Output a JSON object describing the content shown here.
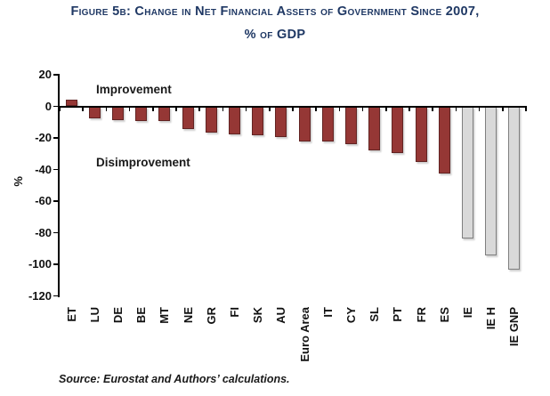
{
  "title": {
    "line1": "Figure 5b: Change in Net Financial Assets of Government Since 2007,",
    "line2": "% of GDP"
  },
  "annotations": {
    "improvement": "Improvement",
    "disimprovement": "Disimprovement"
  },
  "y_axis": {
    "label": "%",
    "ticks": [
      20,
      0,
      -20,
      -40,
      -60,
      -80,
      -100,
      -120
    ]
  },
  "source": "Source: Eurostat and Authors’ calculations.",
  "colors": {
    "bar_red": "#953735",
    "bar_red_border": "#622423",
    "bar_gray": "#D9D9D9",
    "bar_gray_border": "#7F7F7F",
    "title_navy": "#1F3864",
    "axis": "#000000"
  },
  "chart_data": {
    "type": "bar",
    "title": "Change in Net Financial Assets of Government Since 2007, % of GDP",
    "xlabel": "",
    "ylabel": "%",
    "ylim": [
      -120,
      20
    ],
    "grid": false,
    "legend": "none",
    "categories": [
      "ET",
      "LU",
      "DE",
      "BE",
      "MT",
      "NE",
      "GR",
      "FI",
      "SK",
      "AU",
      "Euro Area",
      "IT",
      "CY",
      "SL",
      "PT",
      "FR",
      "ES",
      "IE",
      "IE H",
      "IE GNP"
    ],
    "values": [
      4,
      -7.5,
      -9,
      -9.5,
      -9.5,
      -14.5,
      -16.5,
      -18,
      -18.5,
      -19.5,
      -22,
      -22,
      -24,
      -28,
      -29.5,
      -35,
      -42.5,
      -83.5,
      -94.5,
      -103.5
    ],
    "bar_colors": [
      "red",
      "red",
      "red",
      "red",
      "red",
      "red",
      "red",
      "red",
      "red",
      "red",
      "red",
      "red",
      "red",
      "red",
      "red",
      "red",
      "red",
      "gray",
      "gray",
      "gray"
    ]
  }
}
